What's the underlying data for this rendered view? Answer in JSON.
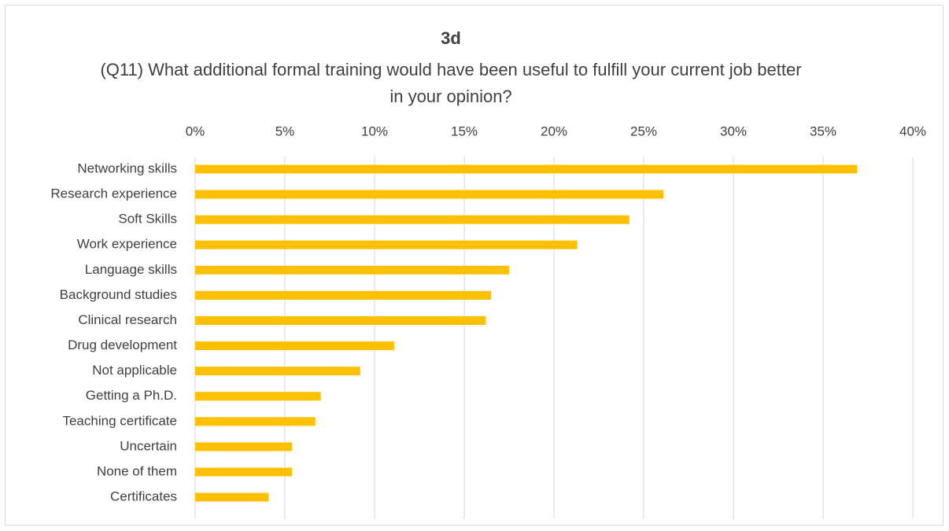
{
  "chart_data": {
    "type": "bar",
    "orientation": "horizontal",
    "title": "3d",
    "subtitle": "(Q11) What additional formal training would have been useful to fulfill your current job better in your opinion?",
    "categories": [
      "Networking skills",
      "Research experience",
      "Soft Skills",
      "Work experience",
      "Language skills",
      "Background studies",
      "Clinical research",
      "Drug development",
      "Not applicable",
      "Getting a Ph.D.",
      "Teaching certificate",
      "Uncertain",
      "None of them",
      "Certificates"
    ],
    "values": [
      36.9,
      26.1,
      24.2,
      21.3,
      17.5,
      16.5,
      16.2,
      11.1,
      9.2,
      7.0,
      6.7,
      5.4,
      5.4,
      4.1
    ],
    "color": "#ffc000",
    "xlim": [
      0,
      40
    ],
    "xticks": [
      {
        "value": 0,
        "label": "0%"
      },
      {
        "value": 5,
        "label": "5%"
      },
      {
        "value": 10,
        "label": "10%"
      },
      {
        "value": 15,
        "label": "15%"
      },
      {
        "value": 20,
        "label": "20%"
      },
      {
        "value": 25,
        "label": "25%"
      },
      {
        "value": 30,
        "label": "30%"
      },
      {
        "value": 35,
        "label": "35%"
      },
      {
        "value": 40,
        "label": "40%"
      }
    ],
    "grid": true
  }
}
